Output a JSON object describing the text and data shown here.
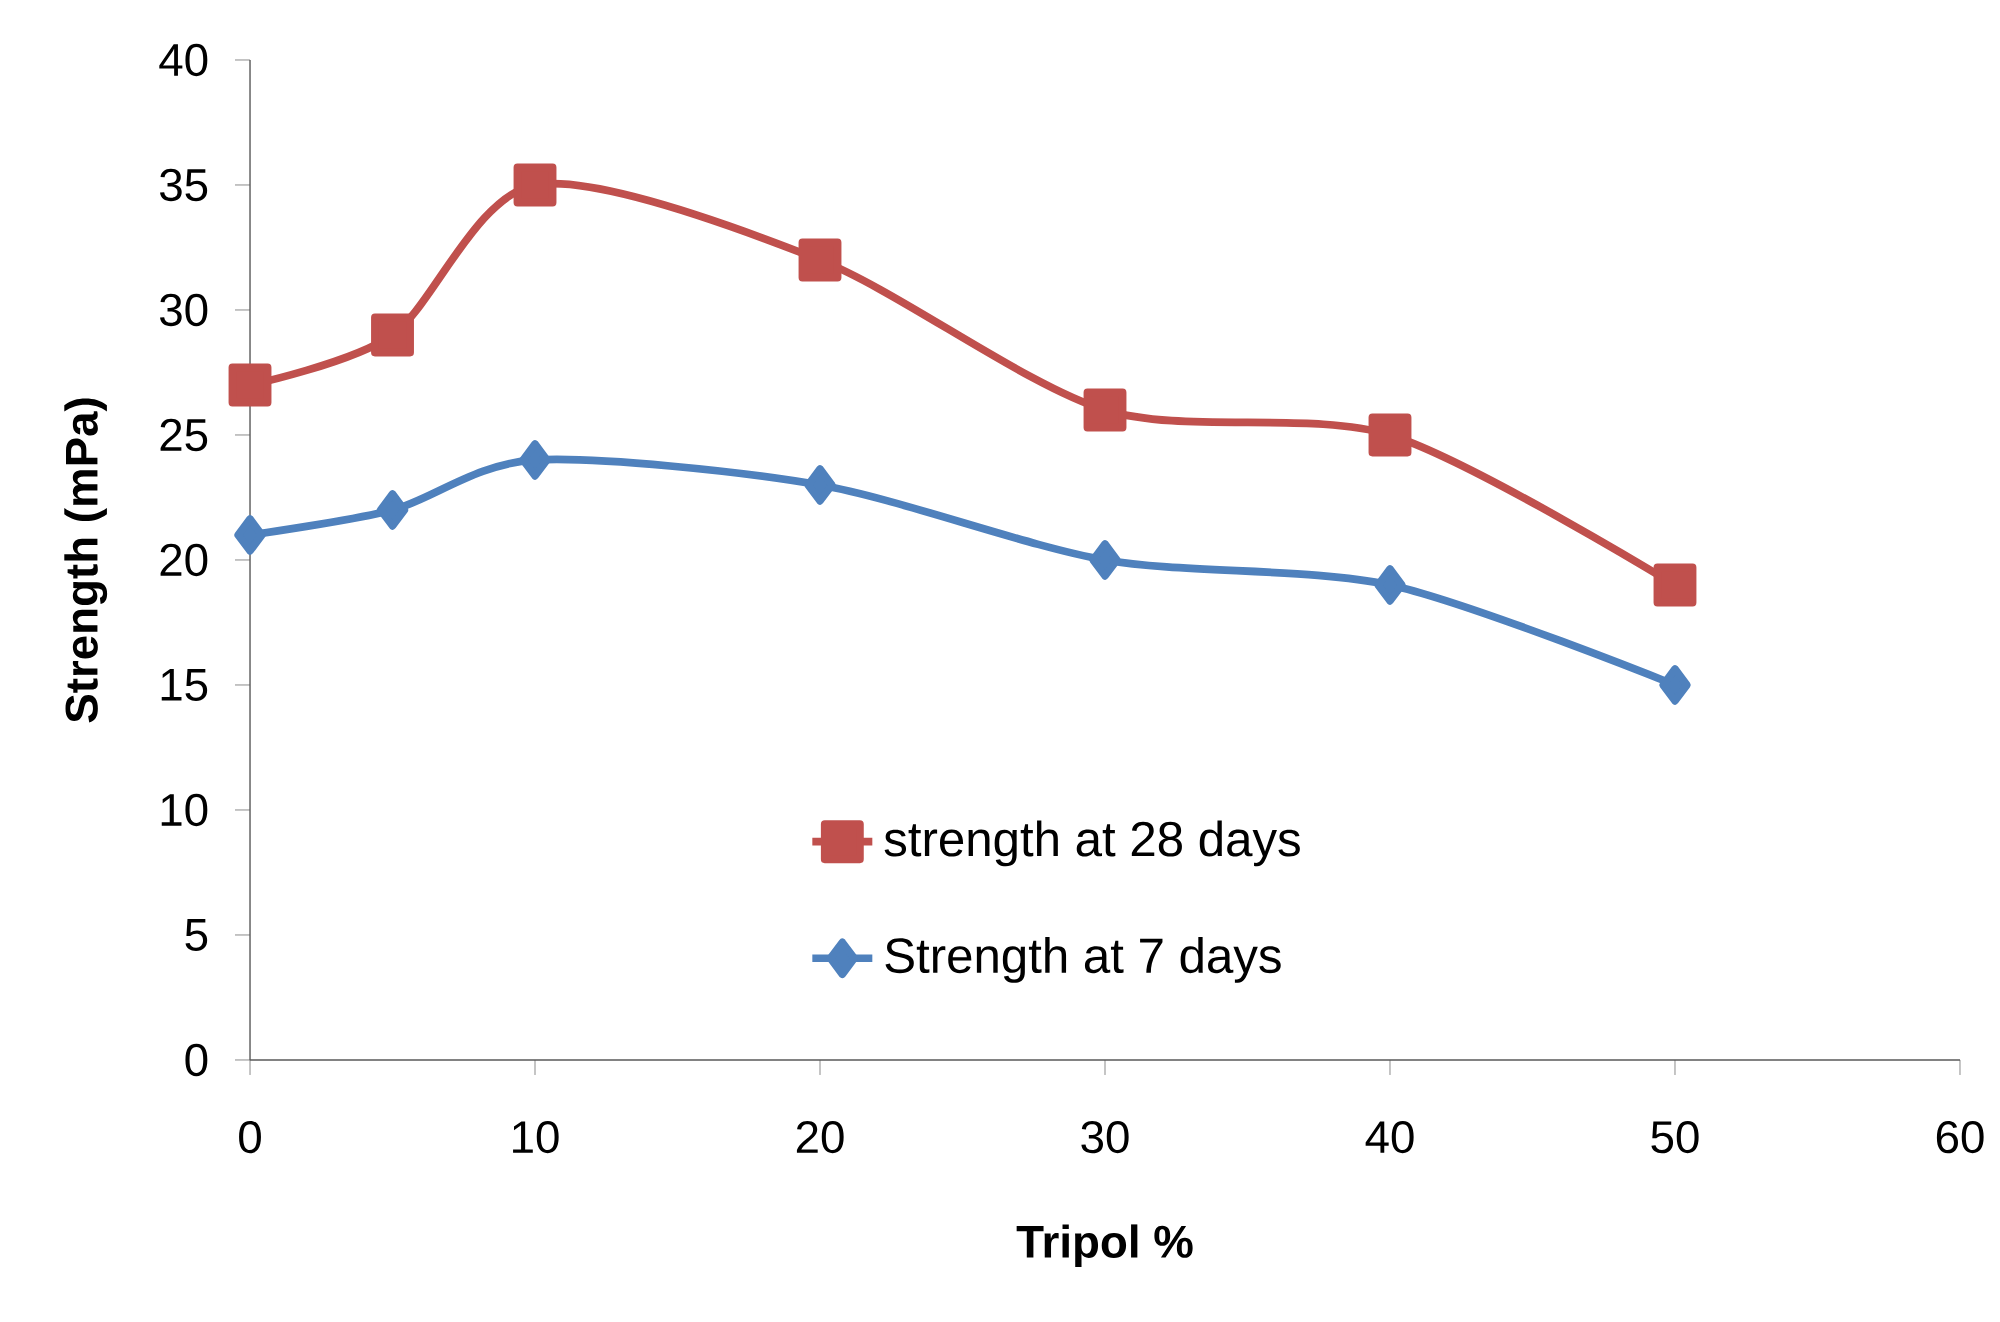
{
  "chart_data": {
    "type": "line",
    "xlabel": "Tripol %",
    "ylabel": "Strength (mPa)",
    "x": [
      0,
      5,
      10,
      20,
      30,
      40,
      50
    ],
    "series": [
      {
        "name": "strength at 28 days",
        "color": "#c0504d",
        "marker": "square",
        "values": [
          27,
          29,
          35,
          32,
          26,
          25,
          19
        ]
      },
      {
        "name": "Strength at 7 days",
        "color": "#4f81bd",
        "marker": "diamond",
        "values": [
          21,
          22,
          24,
          23,
          20,
          19,
          15
        ]
      }
    ],
    "xlim": [
      0,
      60
    ],
    "xticks": [
      0,
      10,
      20,
      30,
      40,
      50,
      60
    ],
    "ylim": [
      0,
      40
    ],
    "yticks": [
      0,
      5,
      10,
      15,
      20,
      25,
      30,
      35,
      40
    ],
    "grid": false,
    "legend": "bottom"
  }
}
